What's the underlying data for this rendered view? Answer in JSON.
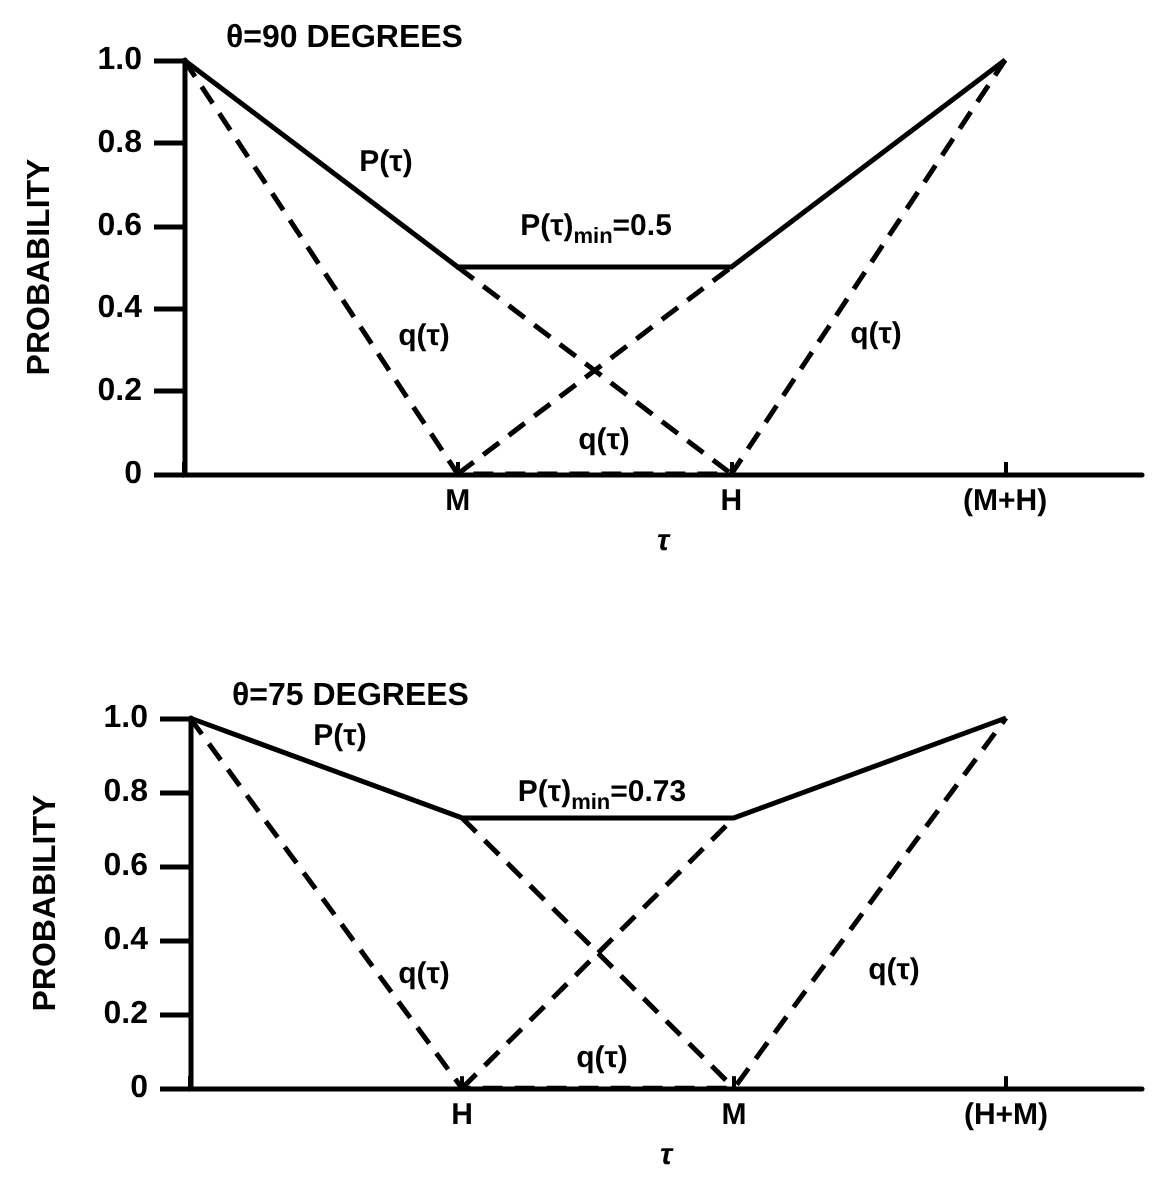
{
  "chart_data": [
    {
      "type": "line",
      "title": "θ=90 DEGREES",
      "xlabel": "τ",
      "ylabel": "PROBABILITY",
      "categories": [
        null,
        "M",
        "H",
        "(M+H)"
      ],
      "series": [
        {
          "color": "#000000",
          "line_style": "solid",
          "values": [
            1,
            0.5,
            0.5,
            1
          ]
        },
        {
          "color": "#000000",
          "line_style": "dashed",
          "values": [
            1,
            0,
            0,
            1
          ]
        },
        {
          "color": "#000000",
          "line_style": "dashed",
          "values": [
            null,
            0.5,
            0,
            null
          ]
        },
        {
          "color": "#000000",
          "line_style": "dashed",
          "values": [
            null,
            0,
            0.5,
            null
          ]
        }
      ],
      "ylim": [
        0,
        1
      ],
      "yticks": [
        0,
        0.2,
        0.4,
        0.6,
        0.8,
        {
          "value": 1,
          "label": "1.0"
        }
      ],
      "annotations": [
        "P(τ)",
        "P(τ)$_{min}$=0.5",
        "q(τ)",
        "q(τ)",
        "q(τ)"
      ]
    },
    {
      "type": "line",
      "title": "θ=75 DEGREES",
      "xlabel": "τ",
      "ylabel": "PROBABILITY",
      "categories": [
        null,
        "H",
        "M",
        "(H+M)"
      ],
      "series": [
        {
          "color": "#000000",
          "line_style": "solid",
          "values": [
            1,
            0.73,
            0.73,
            1
          ]
        },
        {
          "color": "#000000",
          "line_style": "dashed",
          "values": [
            1,
            0,
            0,
            1
          ]
        },
        {
          "color": "#000000",
          "line_style": "dashed",
          "values": [
            null,
            0.73,
            0,
            null
          ]
        },
        {
          "color": "#000000",
          "line_style": "dashed",
          "values": [
            null,
            0,
            0.73,
            null
          ]
        }
      ],
      "ylim": [
        0,
        1
      ],
      "yticks": [
        0,
        0.2,
        0.4,
        0.6,
        0.8,
        {
          "value": 1,
          "label": "1.0"
        }
      ],
      "annotations": [
        "P(τ)",
        "P(τ)$_{min}$=0.73",
        "q(τ)",
        "q(τ)",
        "q(τ)"
      ]
    }
  ]
}
